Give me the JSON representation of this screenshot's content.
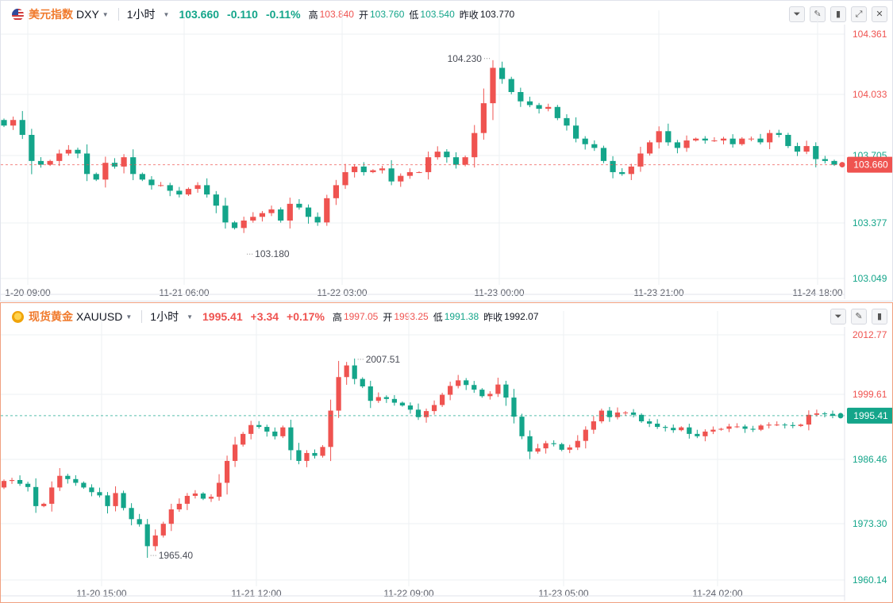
{
  "top": {
    "name": "美元指数",
    "symbol": "DXY",
    "timeframe": "1小时",
    "price": "103.660",
    "change": "-0.110",
    "change_pct": "-0.11%",
    "high_label": "高",
    "high": "103.840",
    "open_label": "开",
    "open": "103.760",
    "low_label": "低",
    "low": "103.540",
    "prev_label": "昨收",
    "prev": "103.770"
  },
  "bottom": {
    "name": "现货黄金",
    "symbol": "XAUUSD",
    "timeframe": "1小时",
    "price": "1995.41",
    "change": "+3.34",
    "change_pct": "+0.17%",
    "high_label": "高",
    "high": "1997.05",
    "open_label": "开",
    "open": "1993.25",
    "low_label": "低",
    "low": "1991.38",
    "prev_label": "昨收",
    "prev": "1992.07"
  },
  "toolbar": {
    "icons": [
      "compare-icon",
      "draw-icon",
      "chart-type-icon",
      "expand-icon",
      "close-icon"
    ],
    "glyphs": [
      "⏷",
      "✎",
      "▮",
      "⤢",
      "✕"
    ]
  },
  "colors": {
    "up": "#ef5350",
    "down": "#14a58a",
    "grid": "#eef0f3",
    "axis_text": "#5d606b"
  },
  "chart_data": [
    {
      "type": "candlestick",
      "title": "美元指数 DXY 1小时",
      "ylim": [
        103.049,
        104.361
      ],
      "yticks": [
        "104.361",
        "104.033",
        "103.705",
        "103.377",
        "103.049"
      ],
      "xticks": [
        "1-20 09:00",
        "11-21 06:00",
        "11-22 03:00",
        "11-23 00:00",
        "11-23 21:00",
        "11-24 18:00"
      ],
      "current_price": "103.660",
      "annotations": [
        {
          "text": "104.230",
          "value": 104.23,
          "kind": "high"
        },
        {
          "text": "103.180",
          "value": 103.18,
          "kind": "low"
        }
      ],
      "close": [
        103.87,
        103.9,
        103.82,
        103.68,
        103.66,
        103.68,
        103.72,
        103.74,
        103.72,
        103.61,
        103.58,
        103.67,
        103.65,
        103.7,
        103.61,
        103.58,
        103.55,
        103.55,
        103.52,
        103.5,
        103.53,
        103.55,
        103.5,
        103.44,
        103.35,
        103.32,
        103.36,
        103.38,
        103.4,
        103.42,
        103.36,
        103.45,
        103.43,
        103.38,
        103.35,
        103.48,
        103.55,
        103.62,
        103.65,
        103.62,
        103.63,
        103.64,
        103.57,
        103.6,
        103.62,
        103.62,
        103.7,
        103.73,
        103.7,
        103.66,
        103.7,
        103.83,
        103.99,
        104.18,
        104.12,
        104.05,
        104.0,
        103.98,
        103.96,
        103.97,
        103.91,
        103.87,
        103.8,
        103.77,
        103.75,
        103.68,
        103.62,
        103.61,
        103.65,
        103.72,
        103.78,
        103.84,
        103.78,
        103.75,
        103.79,
        103.8,
        103.79,
        103.79,
        103.8,
        103.77,
        103.8,
        103.8,
        103.78,
        103.83,
        103.82,
        103.76,
        103.73,
        103.76,
        103.69,
        103.68,
        103.66
      ],
      "open": [
        103.9,
        103.87,
        103.9,
        103.82,
        103.68,
        103.66,
        103.68,
        103.72,
        103.74,
        103.72,
        103.61,
        103.58,
        103.67,
        103.65,
        103.7,
        103.61,
        103.58,
        103.55,
        103.55,
        103.52,
        103.5,
        103.53,
        103.55,
        103.5,
        103.44,
        103.35,
        103.32,
        103.36,
        103.38,
        103.4,
        103.42,
        103.36,
        103.45,
        103.43,
        103.38,
        103.35,
        103.48,
        103.55,
        103.62,
        103.65,
        103.62,
        103.63,
        103.64,
        103.57,
        103.6,
        103.62,
        103.62,
        103.7,
        103.73,
        103.7,
        103.66,
        103.7,
        103.83,
        103.99,
        104.18,
        104.12,
        104.05,
        104.0,
        103.98,
        103.96,
        103.97,
        103.91,
        103.87,
        103.8,
        103.77,
        103.75,
        103.68,
        103.62,
        103.61,
        103.65,
        103.72,
        103.78,
        103.84,
        103.78,
        103.75,
        103.79,
        103.8,
        103.79,
        103.79,
        103.8,
        103.77,
        103.8,
        103.8,
        103.78,
        103.83,
        103.82,
        103.76,
        103.73,
        103.76,
        103.69,
        103.68
      ]
    },
    {
      "type": "candlestick",
      "title": "现货黄金 XAUUSD 1小时",
      "ylim": [
        1960.14,
        2012.77
      ],
      "yticks": [
        "2012.77",
        "1999.61",
        "1986.46",
        "1973.30",
        "1960.14"
      ],
      "xticks": [
        "11-20 15:00",
        "11-21 12:00",
        "11-22 09:00",
        "11-23 05:00",
        "11-24 02:00"
      ],
      "current_price": "1995.41",
      "annotations": [
        {
          "text": "2007.51",
          "value": 2007.51,
          "kind": "high"
        },
        {
          "text": "1965.40",
          "value": 1965.4,
          "kind": "low"
        }
      ],
      "close": [
        1981.4,
        1981.6,
        1980.8,
        1980.1,
        1976.0,
        1976.5,
        1980.0,
        1982.5,
        1981.8,
        1981.0,
        1980.0,
        1979.0,
        1978.3,
        1976.0,
        1978.8,
        1975.6,
        1973.2,
        1972.1,
        1967.4,
        1969.7,
        1972.2,
        1975.3,
        1976.5,
        1978.2,
        1978.7,
        1977.6,
        1978.0,
        1981.0,
        1985.7,
        1989.2,
        1991.5,
        1993.4,
        1993.0,
        1992.0,
        1991.0,
        1992.9,
        1988.0,
        1985.7,
        1987.4,
        1986.8,
        1988.7,
        1996.5,
        2003.7,
        2006.2,
        2003.3,
        2001.7,
        1998.6,
        1999.4,
        1999.0,
        1998.2,
        1997.6,
        1996.7,
        1995.1,
        1996.4,
        1997.7,
        1999.9,
        2001.8,
        2003.0,
        2002.0,
        2001.0,
        1999.6,
        2000.1,
        2002.1,
        1999.3,
        1995.2,
        1991.0,
        1987.7,
        1988.4,
        1989.5,
        1989.3,
        1988.1,
        1988.6,
        1990.0,
        1992.4,
        1994.2,
        1996.5,
        1995.1,
        1996.1,
        1996.1,
        1995.6,
        1994.2,
        1993.7,
        1993.0,
        1992.8,
        1992.3,
        1992.9,
        1991.5,
        1991.0,
        1992.0,
        1992.4,
        1992.6,
        1993.1,
        1993.1,
        1992.6,
        1992.4,
        1993.3,
        1993.5,
        1993.5,
        1993.4,
        1993.2,
        1993.5,
        1995.6,
        1995.9,
        1995.8,
        1995.4
      ],
      "open": [
        1980.0,
        1981.4,
        1981.6,
        1980.8,
        1980.1,
        1976.0,
        1976.5,
        1980.0,
        1982.5,
        1981.8,
        1981.0,
        1980.0,
        1979.0,
        1978.3,
        1976.0,
        1978.8,
        1975.6,
        1973.2,
        1972.1,
        1967.4,
        1969.7,
        1972.2,
        1975.3,
        1976.5,
        1978.2,
        1978.7,
        1977.6,
        1978.0,
        1981.0,
        1985.7,
        1989.2,
        1991.5,
        1993.4,
        1993.0,
        1992.0,
        1991.0,
        1992.9,
        1988.0,
        1985.7,
        1987.4,
        1986.8,
        1988.7,
        1996.5,
        2003.7,
        2006.2,
        2003.3,
        2001.7,
        1998.6,
        1999.4,
        1999.0,
        1998.2,
        1997.6,
        1996.7,
        1995.1,
        1996.4,
        1997.7,
        1999.9,
        2001.8,
        2003.0,
        2002.0,
        2001.0,
        1999.6,
        2000.1,
        2002.1,
        1999.3,
        1995.2,
        1991.0,
        1987.7,
        1988.4,
        1989.5,
        1989.3,
        1988.1,
        1988.6,
        1990.0,
        1992.4,
        1994.2,
        1996.5,
        1995.1,
        1996.1,
        1996.1,
        1995.6,
        1994.2,
        1993.7,
        1993.0,
        1992.8,
        1992.3,
        1992.9,
        1991.5,
        1991.0,
        1992.0,
        1992.4,
        1992.6,
        1993.1,
        1993.1,
        1992.6,
        1992.4,
        1993.3,
        1993.5,
        1993.5,
        1993.4,
        1993.2,
        1993.5,
        1995.6,
        1995.9,
        1995.8
      ]
    }
  ]
}
